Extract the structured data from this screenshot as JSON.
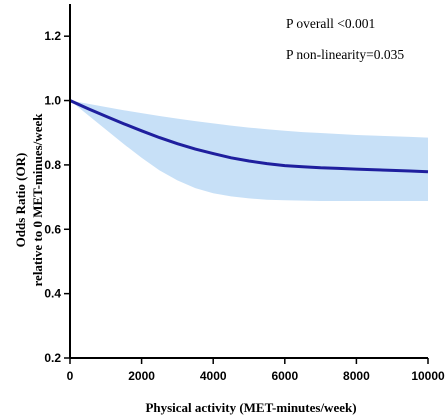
{
  "chart_data": {
    "type": "line",
    "title": "",
    "xlabel": "Physical activity (MET-minutes/week)",
    "ylabel_line1": "Odds  Ratio (OR)",
    "ylabel_line2": "relative to 0 MET-minues/week",
    "xlim": [
      0,
      10000
    ],
    "ylim": [
      0.2,
      1.3
    ],
    "x_ticks": [
      0,
      2000,
      4000,
      6000,
      8000,
      10000
    ],
    "x_tick_labels": [
      "0",
      "2000",
      "4000",
      "6000",
      "8000",
      "10000"
    ],
    "y_ticks": [
      0.2,
      0.4,
      0.6,
      0.8,
      1.0,
      1.2
    ],
    "y_tick_labels": [
      "0.2",
      "0.4",
      "0.6",
      "0.8",
      "1.0",
      "1.2"
    ],
    "grid": false,
    "colors": {
      "line": "#1f1f9e",
      "band": "#c7e0f7",
      "axis": "#000000"
    },
    "series": [
      {
        "x": [
          0,
          500,
          1000,
          1500,
          2000,
          2500,
          3000,
          3500,
          4000,
          4500,
          5000,
          5500,
          6000,
          6500,
          7000,
          7500,
          8000,
          8500,
          9000,
          9500,
          10000
        ],
        "y": [
          1.0,
          0.975,
          0.951,
          0.928,
          0.906,
          0.885,
          0.866,
          0.849,
          0.835,
          0.822,
          0.812,
          0.804,
          0.798,
          0.794,
          0.791,
          0.789,
          0.787,
          0.785,
          0.783,
          0.781,
          0.779
        ],
        "lower": [
          1.0,
          0.955,
          0.91,
          0.865,
          0.822,
          0.783,
          0.752,
          0.728,
          0.712,
          0.702,
          0.696,
          0.692,
          0.69,
          0.689,
          0.688,
          0.688,
          0.688,
          0.688,
          0.688,
          0.688,
          0.688
        ],
        "upper": [
          1.0,
          0.99,
          0.98,
          0.97,
          0.961,
          0.952,
          0.944,
          0.936,
          0.929,
          0.922,
          0.916,
          0.911,
          0.906,
          0.902,
          0.899,
          0.896,
          0.893,
          0.891,
          0.889,
          0.887,
          0.885
        ]
      }
    ],
    "annotations": [
      "P overall <0.001",
      "P non-linearity=0.035"
    ]
  }
}
